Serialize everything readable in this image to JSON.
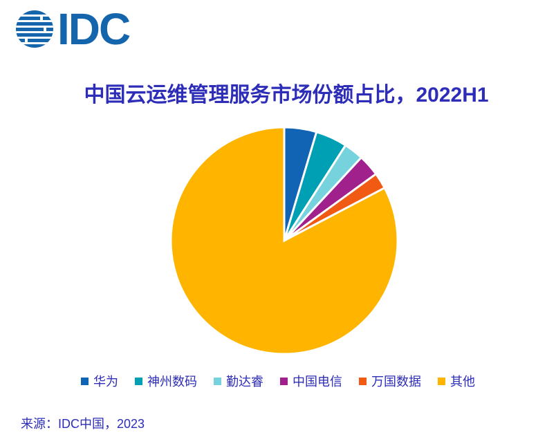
{
  "logo": {
    "text": "IDC",
    "color": "#1565AC"
  },
  "title": {
    "text": "中国云运维管理服务市场份额占比，2022H1",
    "color": "#2D2DB8"
  },
  "source": {
    "text": "来源：IDC中国，2023"
  },
  "chart_data": {
    "type": "pie",
    "title": "中国云运维管理服务市场份额占比，2022H1",
    "unit": "%",
    "start_angle_deg": 0,
    "direction": "clockwise",
    "data_labels_shown": false,
    "legend_position": "bottom",
    "segments": [
      {
        "label": "华为",
        "value": 4.6,
        "color": "#1164B4"
      },
      {
        "label": "神州数码",
        "value": 4.5,
        "color": "#00A0B4"
      },
      {
        "label": "勤达睿",
        "value": 2.8,
        "color": "#76D3DE"
      },
      {
        "label": "中国电信",
        "value": 3.1,
        "color": "#A0208C"
      },
      {
        "label": "万国数据",
        "value": 2.3,
        "color": "#F15A13"
      },
      {
        "label": "其他",
        "value": 82.7,
        "color": "#FFB400"
      }
    ]
  }
}
